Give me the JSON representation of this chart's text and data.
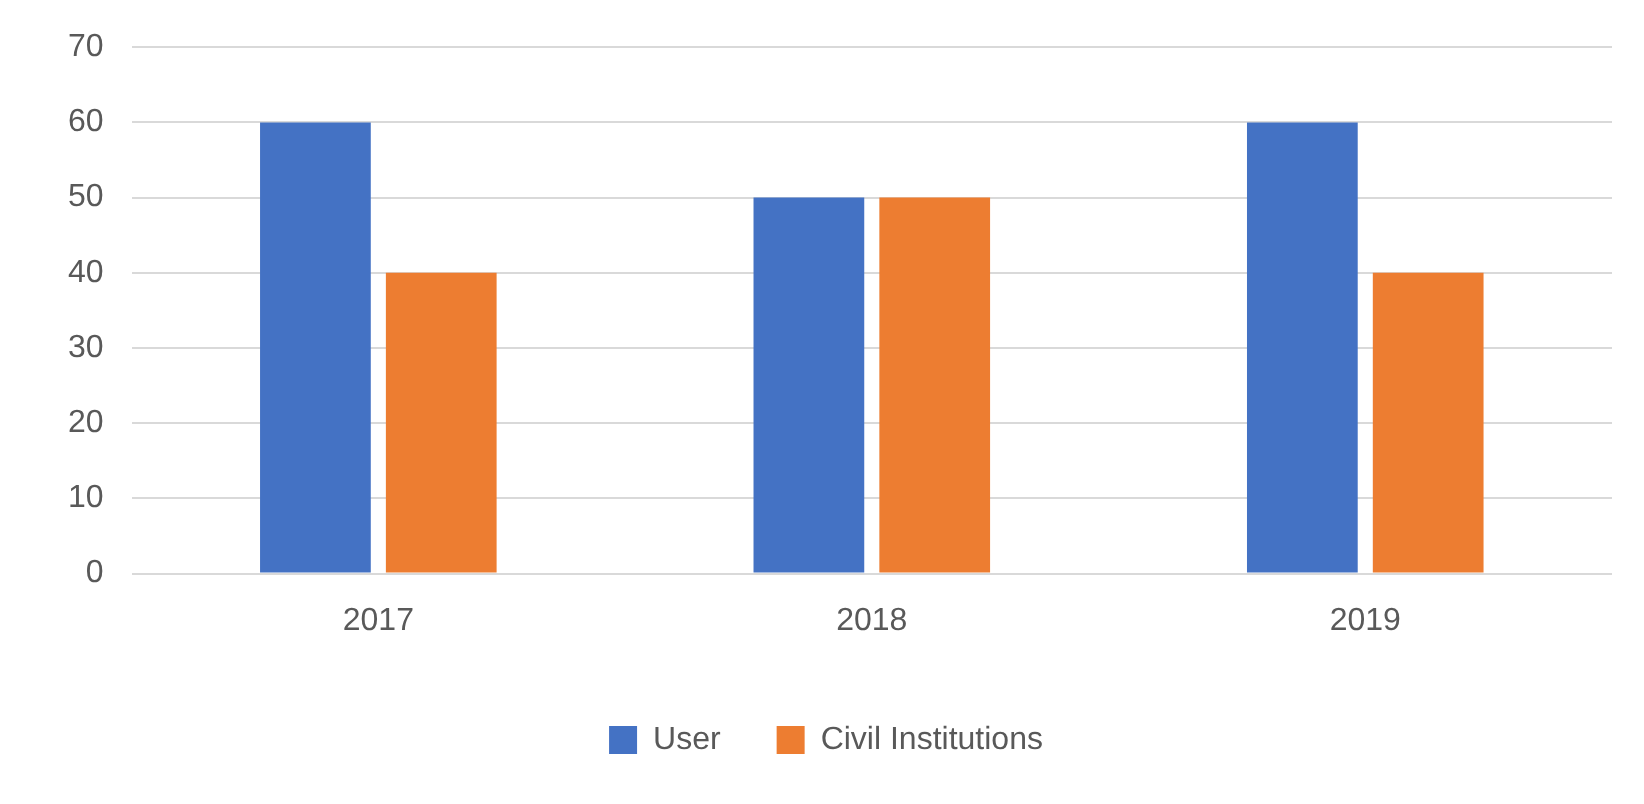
{
  "chart_data": {
    "type": "bar",
    "categories": [
      "2017",
      "2018",
      "2019"
    ],
    "series": [
      {
        "name": "User",
        "color": "#4472c4",
        "values": [
          60,
          50,
          60
        ]
      },
      {
        "name": "Civil Institutions",
        "color": "#ed7d31",
        "values": [
          40,
          50,
          40
        ]
      }
    ],
    "ylim": [
      0,
      70
    ],
    "yticks": [
      0,
      10,
      20,
      30,
      40,
      50,
      60,
      70
    ],
    "grid": "y",
    "legend": "bottom"
  }
}
